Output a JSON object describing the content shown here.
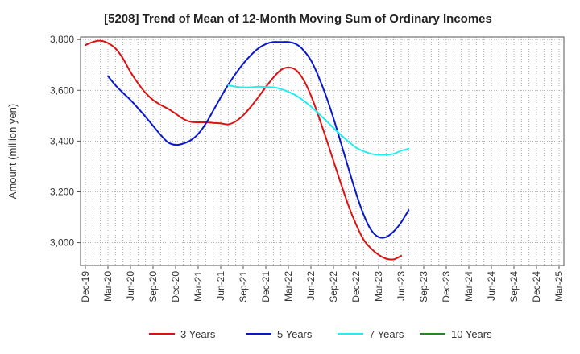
{
  "chart_data": {
    "type": "line",
    "title": "[5208]  Trend of Mean of 12-Month Moving Sum of Ordinary Incomes",
    "xlabel": "",
    "ylabel": "Amount (million yen)",
    "ylim": [
      2910,
      3810
    ],
    "y_ticks": [
      3000,
      3200,
      3400,
      3600,
      3800
    ],
    "y_tick_labels": [
      "3,000",
      "3,200",
      "3,400",
      "3,600",
      "3,800"
    ],
    "x_tick_labels": [
      "Dec-19",
      "Mar-20",
      "Jun-20",
      "Sep-20",
      "Dec-20",
      "Mar-21",
      "Jun-21",
      "Sep-21",
      "Dec-21",
      "Mar-22",
      "Jun-22",
      "Sep-22",
      "Dec-22",
      "Mar-23",
      "Jun-23",
      "Sep-23",
      "Dec-23",
      "Mar-24",
      "Jun-24",
      "Sep-24",
      "Dec-24",
      "Mar-25"
    ],
    "series": [
      {
        "name": "3 Years",
        "color": "#dd1111",
        "points": [
          [
            0,
            3778
          ],
          [
            1,
            3790
          ],
          [
            2,
            3795
          ],
          [
            3,
            3786
          ],
          [
            4,
            3765
          ],
          [
            5,
            3725
          ],
          [
            6,
            3672
          ],
          [
            7,
            3628
          ],
          [
            8,
            3590
          ],
          [
            9,
            3562
          ],
          [
            10,
            3543
          ],
          [
            11,
            3527
          ],
          [
            12,
            3508
          ],
          [
            13,
            3488
          ],
          [
            14,
            3476
          ],
          [
            15,
            3474
          ],
          [
            16,
            3474
          ],
          [
            17,
            3472
          ],
          [
            18,
            3470
          ],
          [
            19,
            3466
          ],
          [
            20,
            3478
          ],
          [
            21,
            3502
          ],
          [
            22,
            3535
          ],
          [
            23,
            3573
          ],
          [
            24,
            3613
          ],
          [
            25,
            3650
          ],
          [
            26,
            3680
          ],
          [
            27,
            3690
          ],
          [
            28,
            3680
          ],
          [
            29,
            3642
          ],
          [
            30,
            3580
          ],
          [
            31,
            3500
          ],
          [
            32,
            3412
          ],
          [
            33,
            3322
          ],
          [
            34,
            3232
          ],
          [
            35,
            3145
          ],
          [
            36,
            3072
          ],
          [
            37,
            3012
          ],
          [
            38,
            2977
          ],
          [
            39,
            2952
          ],
          [
            40,
            2937
          ],
          [
            41,
            2934
          ],
          [
            42,
            2948
          ]
        ]
      },
      {
        "name": "5 Years",
        "color": "#0a18cc",
        "points": [
          [
            3,
            3656
          ],
          [
            4,
            3620
          ],
          [
            5,
            3590
          ],
          [
            6,
            3562
          ],
          [
            7,
            3530
          ],
          [
            8,
            3496
          ],
          [
            9,
            3460
          ],
          [
            10,
            3425
          ],
          [
            11,
            3395
          ],
          [
            12,
            3385
          ],
          [
            13,
            3390
          ],
          [
            14,
            3403
          ],
          [
            15,
            3428
          ],
          [
            16,
            3468
          ],
          [
            17,
            3520
          ],
          [
            18,
            3572
          ],
          [
            19,
            3622
          ],
          [
            20,
            3666
          ],
          [
            21,
            3705
          ],
          [
            22,
            3738
          ],
          [
            23,
            3765
          ],
          [
            24,
            3782
          ],
          [
            25,
            3790
          ],
          [
            26,
            3790
          ],
          [
            27,
            3790
          ],
          [
            28,
            3782
          ],
          [
            29,
            3758
          ],
          [
            30,
            3718
          ],
          [
            31,
            3655
          ],
          [
            32,
            3578
          ],
          [
            33,
            3490
          ],
          [
            34,
            3392
          ],
          [
            35,
            3292
          ],
          [
            36,
            3195
          ],
          [
            37,
            3111
          ],
          [
            38,
            3050
          ],
          [
            39,
            3022
          ],
          [
            40,
            3022
          ],
          [
            41,
            3044
          ],
          [
            42,
            3080
          ],
          [
            43,
            3128
          ]
        ]
      },
      {
        "name": "7 Years",
        "color": "#22eeee",
        "points": [
          [
            19,
            3620
          ],
          [
            20,
            3614
          ],
          [
            21,
            3612
          ],
          [
            22,
            3612
          ],
          [
            23,
            3614
          ],
          [
            24,
            3613
          ],
          [
            25,
            3612
          ],
          [
            26,
            3605
          ],
          [
            27,
            3594
          ],
          [
            28,
            3580
          ],
          [
            29,
            3560
          ],
          [
            30,
            3536
          ],
          [
            31,
            3509
          ],
          [
            32,
            3481
          ],
          [
            33,
            3452
          ],
          [
            34,
            3424
          ],
          [
            35,
            3398
          ],
          [
            36,
            3375
          ],
          [
            37,
            3360
          ],
          [
            38,
            3350
          ],
          [
            39,
            3346
          ],
          [
            40,
            3346
          ],
          [
            41,
            3350
          ],
          [
            42,
            3362
          ],
          [
            43,
            3370
          ]
        ]
      },
      {
        "name": "10 Years",
        "color": "#228822",
        "points": []
      }
    ]
  }
}
